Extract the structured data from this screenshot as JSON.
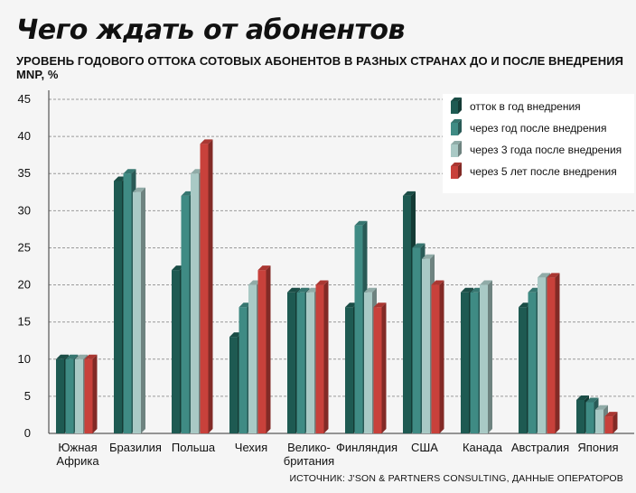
{
  "header": {
    "title": "Чего ждать от абонентов",
    "subtitle": "УРОВЕНЬ ГОДОВОГО ОТТОКА СОТОВЫХ АБОНЕНТОВ В РАЗНЫХ СТРАНАХ ДО И ПОСЛЕ ВНЕДРЕНИЯ MNP, %"
  },
  "source": "ИСТОЧНИК: J'SON & PARTNERS CONSULTING, ДАННЫЕ ОПЕРАТОРОВ",
  "colors": {
    "series": [
      "#1e5a52",
      "#3f8b84",
      "#a9c9c5",
      "#c8413b"
    ],
    "grid": "#9a9a9a",
    "legend_bg": "#ffffff"
  },
  "chart_data": {
    "type": "bar",
    "title": "Чего ждать от абонентов",
    "subtitle": "УРОВЕНЬ ГОДОВОГО ОТТОКА СОТОВЫХ АБОНЕНТОВ В РАЗНЫХ СТРАНАХ ДО И ПОСЛЕ ВНЕДРЕНИЯ MNP, %",
    "categories": [
      [
        "Южная",
        "Африка"
      ],
      [
        "Бразилия"
      ],
      [
        "Польша"
      ],
      [
        "Чехия"
      ],
      [
        "Велико-",
        "британия"
      ],
      [
        "Финляндия"
      ],
      [
        "США"
      ],
      [
        "Канада"
      ],
      [
        "Австралия"
      ],
      [
        "Япония"
      ]
    ],
    "series": [
      {
        "name": "отток в год внедрения",
        "values": [
          10,
          34,
          22,
          13,
          19,
          17,
          32,
          19,
          17,
          4.5
        ]
      },
      {
        "name": "через год после внедрения",
        "values": [
          10,
          35,
          32,
          17,
          19,
          28,
          25,
          19,
          19,
          4.2
        ]
      },
      {
        "name": "через 3 года после внедрения",
        "values": [
          10,
          32.5,
          35,
          20,
          19,
          19,
          23.5,
          20,
          21,
          3.2
        ]
      },
      {
        "name": "через 5 лет после внедрения",
        "values": [
          10,
          null,
          39,
          22,
          20,
          17,
          20,
          null,
          21,
          2.3
        ]
      }
    ],
    "ylim": [
      0,
      45
    ],
    "yticks": [
      0,
      5,
      10,
      15,
      20,
      25,
      30,
      35,
      40,
      45
    ],
    "grid": true,
    "legend_position": "top-right"
  }
}
